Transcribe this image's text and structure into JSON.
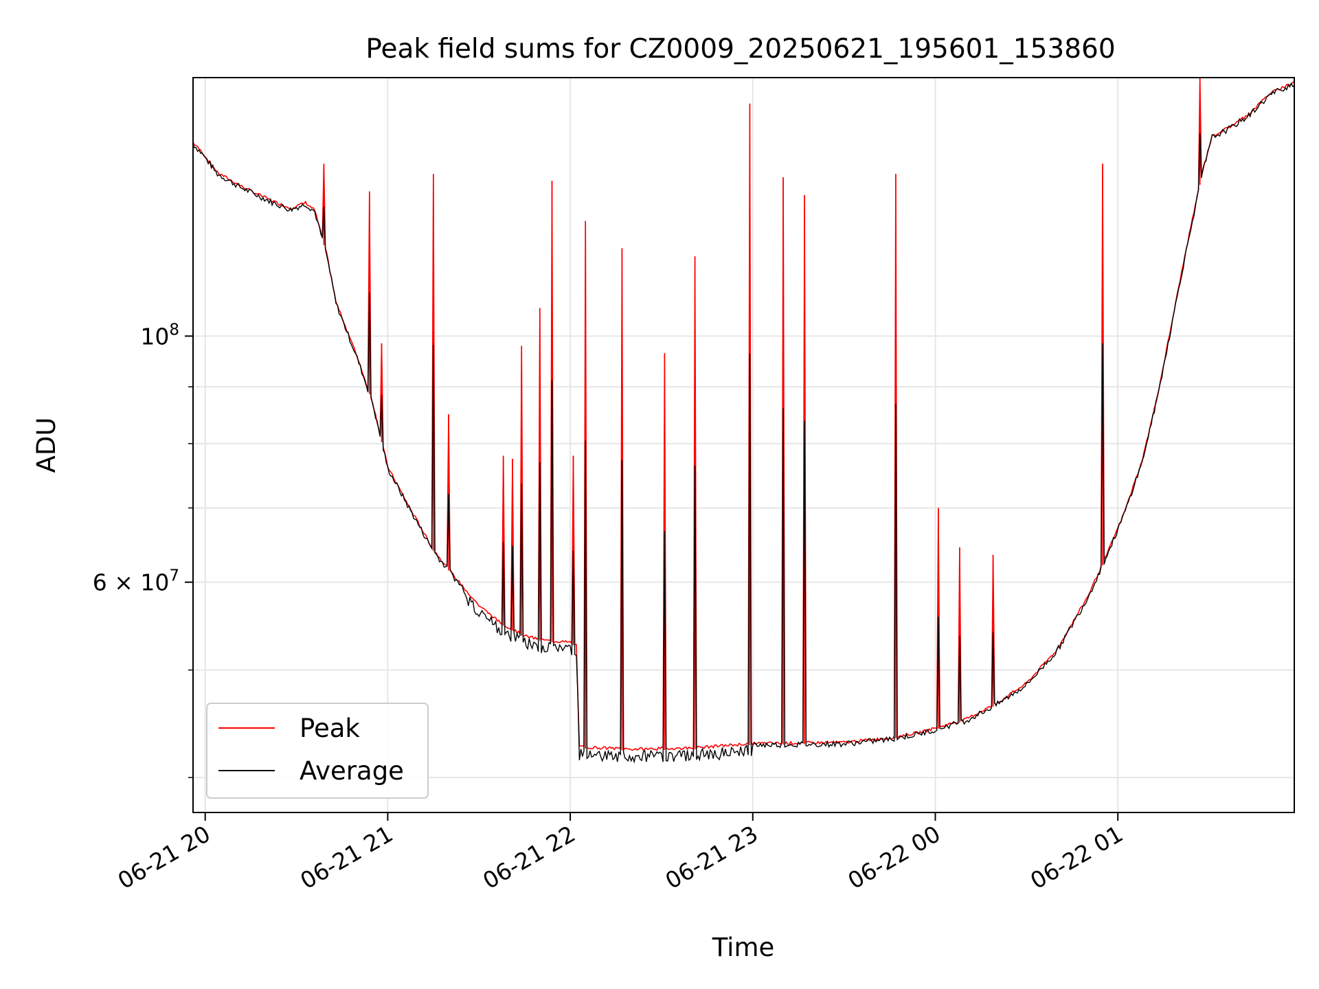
{
  "chart_data": {
    "type": "line",
    "title": "Peak field sums for CZ0009_20250621_195601_153860",
    "xlabel": "Time",
    "ylabel": "ADU",
    "y_scale": "log",
    "x_range": [
      "2025-06-21 19:56",
      "2025-06-22 01:58"
    ],
    "ylim": [
      37200000,
      171000000
    ],
    "grid": true,
    "legend_position": "lower-left",
    "x_ticks": [
      {
        "t": "2025-06-21 20:00",
        "label": "06-21 20"
      },
      {
        "t": "2025-06-21 21:00",
        "label": "06-21 21"
      },
      {
        "t": "2025-06-21 22:00",
        "label": "06-21 22"
      },
      {
        "t": "2025-06-21 23:00",
        "label": "06-21 23"
      },
      {
        "t": "2025-06-22 00:00",
        "label": "06-22 00"
      },
      {
        "t": "2025-06-22 01:00",
        "label": "06-22 01"
      }
    ],
    "y_ticks": [
      {
        "value": 100000000,
        "base": "10",
        "exp": "8"
      },
      {
        "value": 60000000,
        "mantissa": "6 × ",
        "base": "10",
        "exp": "7"
      }
    ],
    "y_minor_ticks": [
      40000000,
      50000000,
      70000000,
      80000000,
      90000000
    ],
    "series": [
      {
        "name": "Average",
        "color": "#000000",
        "points": [
          [
            "2025-06-21 19:56",
            149000000
          ],
          [
            "2025-06-21 19:59",
            146000000
          ],
          [
            "2025-06-21 20:04",
            140000000
          ],
          [
            "2025-06-21 20:12",
            136000000
          ],
          [
            "2025-06-21 20:22",
            132000000
          ],
          [
            "2025-06-21 20:28",
            130000000
          ],
          [
            "2025-06-21 20:33",
            131500000
          ],
          [
            "2025-06-21 20:36",
            129500000
          ],
          [
            "2025-06-21 20:40",
            118000000
          ],
          [
            "2025-06-21 20:43",
            107000000
          ],
          [
            "2025-06-21 20:50",
            95500000
          ],
          [
            "2025-06-21 20:55",
            87000000
          ],
          [
            "2025-06-21 21:00",
            76000000
          ],
          [
            "2025-06-21 21:07",
            70000000
          ],
          [
            "2025-06-21 21:15",
            64000000
          ],
          [
            "2025-06-21 21:22",
            60500000
          ],
          [
            "2025-06-21 21:30",
            57000000
          ],
          [
            "2025-06-21 21:37",
            55000000
          ],
          [
            "2025-06-21 21:45",
            53500000
          ],
          [
            "2025-06-21 21:52",
            53000000
          ],
          [
            "2025-06-21 22:00",
            52800000
          ],
          [
            "2025-06-21 22:02",
            52500000
          ],
          [
            "2025-06-21 22:03",
            42500000
          ],
          [
            "2025-06-21 22:20",
            42300000
          ],
          [
            "2025-06-21 22:40",
            42400000
          ],
          [
            "2025-06-21 22:50",
            42600000
          ],
          [
            "2025-06-21 23:00",
            42800000
          ],
          [
            "2025-06-21 23:30",
            42900000
          ],
          [
            "2025-06-21 23:45",
            43300000
          ],
          [
            "2025-06-21 23:55",
            43800000
          ],
          [
            "2025-06-22 00:00",
            44200000
          ],
          [
            "2025-06-22 00:10",
            45000000
          ],
          [
            "2025-06-22 00:20",
            46500000
          ],
          [
            "2025-06-22 00:30",
            48500000
          ],
          [
            "2025-06-22 00:40",
            52000000
          ],
          [
            "2025-06-22 00:50",
            58000000
          ],
          [
            "2025-06-22 00:56",
            63000000
          ],
          [
            "2025-06-22 01:02",
            69000000
          ],
          [
            "2025-06-22 01:08",
            77000000
          ],
          [
            "2025-06-22 01:13",
            88000000
          ],
          [
            "2025-06-22 01:17",
            100000000
          ],
          [
            "2025-06-22 01:21",
            114000000
          ],
          [
            "2025-06-22 01:25",
            129000000
          ],
          [
            "2025-06-22 01:28",
            141000000
          ],
          [
            "2025-06-22 01:31",
            151000000
          ],
          [
            "2025-06-22 01:37",
            154000000
          ],
          [
            "2025-06-22 01:43",
            158000000
          ],
          [
            "2025-06-22 01:50",
            165000000
          ],
          [
            "2025-06-22 01:58",
            169000000
          ]
        ]
      },
      {
        "name": "Peak",
        "color": "#ff0000",
        "spikes": [
          [
            "2025-06-21 20:39",
            143000000
          ],
          [
            "2025-06-21 20:54",
            135000000
          ],
          [
            "2025-06-21 20:58",
            98500000
          ],
          [
            "2025-06-21 21:15",
            140000000
          ],
          [
            "2025-06-21 21:20",
            85000000
          ],
          [
            "2025-06-21 21:38",
            78000000
          ],
          [
            "2025-06-21 21:41",
            77500000
          ],
          [
            "2025-06-21 21:44",
            98000000
          ],
          [
            "2025-06-21 21:50",
            106000000
          ],
          [
            "2025-06-21 21:54",
            138000000
          ],
          [
            "2025-06-21 22:01",
            78000000
          ],
          [
            "2025-06-21 22:05",
            127000000
          ],
          [
            "2025-06-21 22:17",
            120000000
          ],
          [
            "2025-06-21 22:31",
            96500000
          ],
          [
            "2025-06-21 22:41",
            118000000
          ],
          [
            "2025-06-21 22:59",
            162000000
          ],
          [
            "2025-06-21 23:10",
            139000000
          ],
          [
            "2025-06-21 23:17",
            134000000
          ],
          [
            "2025-06-21 23:47",
            140000000
          ],
          [
            "2025-06-22 00:01",
            70000000
          ],
          [
            "2025-06-22 00:08",
            64500000
          ],
          [
            "2025-06-22 00:19",
            63500000
          ],
          [
            "2025-06-22 00:55",
            143000000
          ],
          [
            "2025-06-22 01:27",
            171000000
          ]
        ]
      }
    ]
  }
}
